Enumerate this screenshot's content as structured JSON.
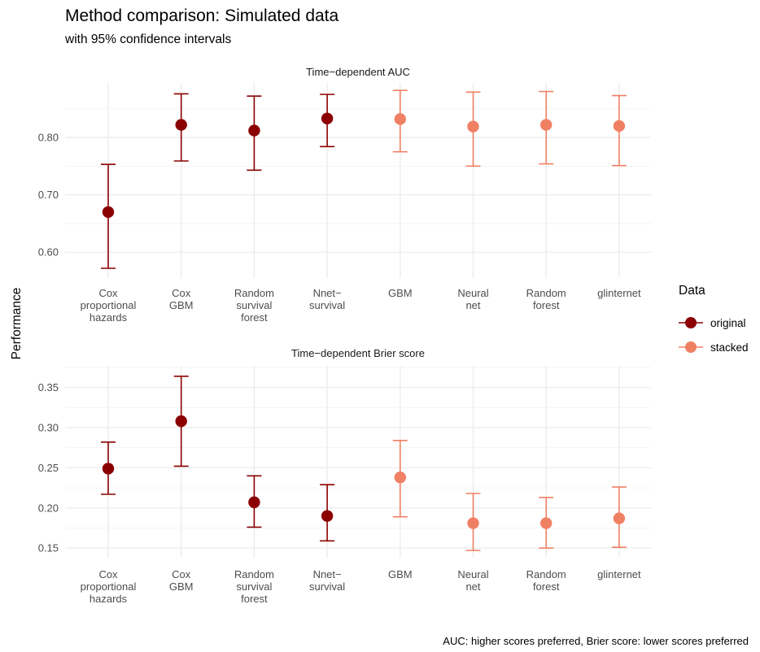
{
  "title": "Method comparison: Simulated data",
  "subtitle": "with 95% confidence intervals",
  "caption": "AUC: higher scores preferred, Brier score: lower scores preferred",
  "ylabel": "Performance",
  "legend": {
    "title": "Data",
    "placement": "right",
    "items": [
      {
        "label": "original",
        "color": "#8B0000"
      },
      {
        "label": "stacked",
        "color": "#F08064"
      }
    ]
  },
  "chart_data": [
    {
      "type": "scatter",
      "panel_title": "Time−dependent AUC",
      "categories": [
        [
          "Cox",
          "proportional",
          "hazards"
        ],
        [
          "Cox",
          "GBM"
        ],
        [
          "Random",
          "survival",
          "forest"
        ],
        [
          "Nnet−",
          "survival"
        ],
        [
          "GBM"
        ],
        [
          "Neural",
          "net"
        ],
        [
          "Random",
          "forest"
        ],
        [
          "glinternet"
        ]
      ],
      "series_by_point": [
        "original",
        "original",
        "original",
        "original",
        "stacked",
        "stacked",
        "stacked",
        "stacked"
      ],
      "estimate": [
        0.67,
        0.822,
        0.812,
        0.833,
        0.832,
        0.819,
        0.822,
        0.82
      ],
      "lower": [
        0.572,
        0.759,
        0.743,
        0.784,
        0.775,
        0.75,
        0.754,
        0.751
      ],
      "upper": [
        0.753,
        0.876,
        0.872,
        0.875,
        0.882,
        0.879,
        0.88,
        0.873
      ],
      "ylim": [
        0.555,
        0.895
      ],
      "yticks": [
        0.6,
        0.7,
        0.8
      ],
      "ytick_labels": [
        "0.60",
        "0.70",
        "0.80"
      ],
      "grid": true
    },
    {
      "type": "scatter",
      "panel_title": "Time−dependent Brier score",
      "categories": [
        [
          "Cox",
          "proportional",
          "hazards"
        ],
        [
          "Cox",
          "GBM"
        ],
        [
          "Random",
          "survival",
          "forest"
        ],
        [
          "Nnet−",
          "survival"
        ],
        [
          "GBM"
        ],
        [
          "Neural",
          "net"
        ],
        [
          "Random",
          "forest"
        ],
        [
          "glinternet"
        ]
      ],
      "series_by_point": [
        "original",
        "original",
        "original",
        "original",
        "stacked",
        "stacked",
        "stacked",
        "stacked"
      ],
      "estimate": [
        0.249,
        0.308,
        0.207,
        0.19,
        0.238,
        0.181,
        0.181,
        0.187
      ],
      "lower": [
        0.217,
        0.252,
        0.176,
        0.159,
        0.189,
        0.147,
        0.15,
        0.151
      ],
      "upper": [
        0.282,
        0.364,
        0.24,
        0.229,
        0.284,
        0.218,
        0.213,
        0.226
      ],
      "ylim": [
        0.138,
        0.377
      ],
      "yticks": [
        0.15,
        0.2,
        0.25,
        0.3,
        0.35
      ],
      "ytick_labels": [
        "0.15",
        "0.20",
        "0.25",
        "0.30",
        "0.35"
      ],
      "grid": true
    }
  ]
}
